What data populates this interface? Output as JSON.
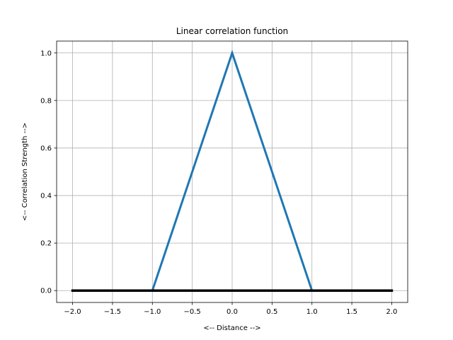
{
  "chart_data": {
    "type": "line",
    "title": "Linear correlation function",
    "xlabel": "<-- Distance -->",
    "ylabel": "<-- Correlation Strength -->",
    "xlim": [
      -2.2,
      2.2
    ],
    "ylim": [
      -0.05,
      1.05
    ],
    "xticks": [
      -2.0,
      -1.5,
      -1.0,
      -0.5,
      0.0,
      0.5,
      1.0,
      1.5,
      2.0
    ],
    "xtick_labels": [
      "−2.0",
      "−1.5",
      "−1.0",
      "−0.5",
      "0.0",
      "0.5",
      "1.0",
      "1.5",
      "2.0"
    ],
    "yticks": [
      0.0,
      0.2,
      0.4,
      0.6,
      0.8,
      1.0
    ],
    "ytick_labels": [
      "0.0",
      "0.2",
      "0.4",
      "0.6",
      "0.8",
      "1.0"
    ],
    "grid": true,
    "legend": "none",
    "series": [
      {
        "x": [
          -2.0,
          -1.0,
          0.0,
          1.0,
          2.0
        ],
        "y": [
          0.0,
          0.0,
          1.0,
          0.0,
          0.0
        ],
        "color": "#1f77b4"
      },
      {
        "x": [
          -2.0,
          2.0
        ],
        "y": [
          0.0,
          0.0
        ],
        "color": "#000000"
      }
    ]
  }
}
